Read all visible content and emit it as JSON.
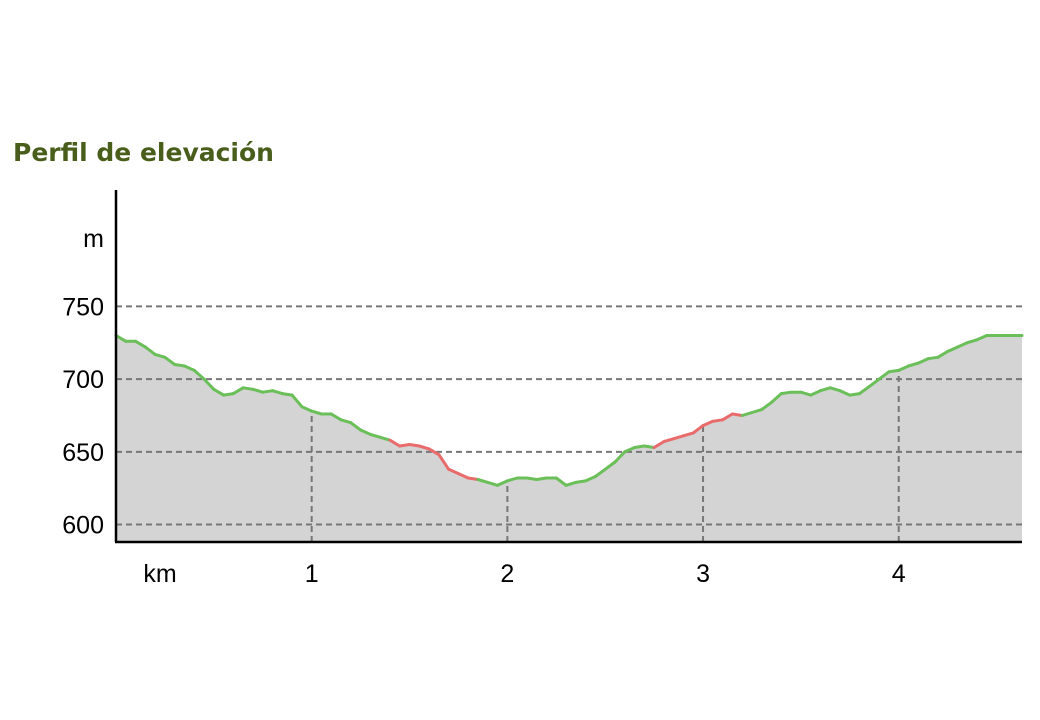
{
  "chart_data": {
    "type": "area",
    "title": "Perfil de elevación",
    "xlabel": "km",
    "ylabel": "m",
    "x_ticks": [
      "1",
      "2",
      "3",
      "4"
    ],
    "x_tick_values": [
      1,
      2,
      3,
      4
    ],
    "y_ticks": [
      "600",
      "650",
      "700",
      "750"
    ],
    "y_tick_values": [
      600,
      650,
      700,
      750
    ],
    "xlim": [
      0,
      4.63
    ],
    "ylim": [
      588,
      830
    ],
    "grid": true,
    "colors": {
      "fill": "#d4d4d4",
      "line": "#6bbf59",
      "steep": "#e96b6b",
      "grid": "#777777",
      "axis": "#000000",
      "title": "#4a5e1c"
    },
    "series": [
      {
        "x": [
          0,
          0.05,
          0.1,
          0.15,
          0.2,
          0.25,
          0.3,
          0.35,
          0.4,
          0.45,
          0.5,
          0.55,
          0.6,
          0.65,
          0.7,
          0.75,
          0.8,
          0.85,
          0.9,
          0.95,
          1.0,
          1.05,
          1.1,
          1.15,
          1.2,
          1.25,
          1.3,
          1.35,
          1.4,
          1.45,
          1.5,
          1.55,
          1.6,
          1.65,
          1.7,
          1.75,
          1.8,
          1.85,
          1.9,
          1.95,
          2.0,
          2.05,
          2.1,
          2.15,
          2.2,
          2.25,
          2.3,
          2.35,
          2.4,
          2.45,
          2.5,
          2.55,
          2.6,
          2.65,
          2.7,
          2.75,
          2.8,
          2.85,
          2.9,
          2.95,
          3.0,
          3.05,
          3.1,
          3.15,
          3.2,
          3.25,
          3.3,
          3.35,
          3.4,
          3.45,
          3.5,
          3.55,
          3.6,
          3.65,
          3.7,
          3.75,
          3.8,
          3.85,
          3.9,
          3.95,
          4.0,
          4.05,
          4.1,
          4.15,
          4.2,
          4.25,
          4.3,
          4.35,
          4.4,
          4.45,
          4.5,
          4.55,
          4.6,
          4.63
        ],
        "y": [
          730,
          726,
          726,
          722,
          717,
          715,
          710,
          709,
          706,
          700,
          693,
          689,
          690,
          694,
          693,
          691,
          692,
          690,
          689,
          681,
          678,
          676,
          676,
          672,
          670,
          665,
          662,
          660,
          658,
          654,
          655,
          654,
          652,
          648,
          638,
          635,
          632,
          631,
          629,
          627,
          630,
          632,
          632,
          631,
          632,
          632,
          627,
          629,
          630,
          633,
          638,
          643,
          650,
          653,
          654,
          653,
          657,
          659,
          661,
          663,
          668,
          671,
          672,
          676,
          675,
          677,
          679,
          684,
          690,
          691,
          691,
          689,
          692,
          694,
          692,
          689,
          690,
          695,
          700,
          705,
          706,
          709,
          711,
          714,
          715,
          719,
          722,
          725,
          727,
          730,
          730,
          730,
          730,
          730
        ],
        "steep_ranges": [
          [
            1.4,
            1.85
          ],
          [
            2.75,
            3.2
          ]
        ]
      }
    ]
  }
}
